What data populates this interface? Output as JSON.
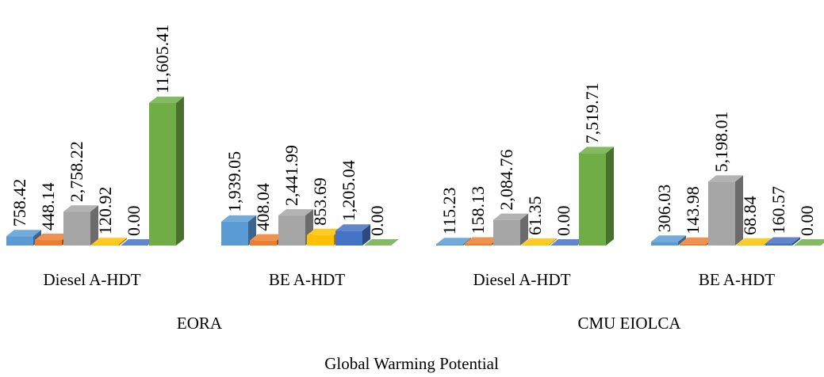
{
  "chart_data": {
    "type": "bar3d",
    "title": "Global Warming Potential",
    "categories": [
      "Diesel A-HDT",
      "BE A-HDT",
      "Diesel A-HDT",
      "BE A-HDT"
    ],
    "groups": [
      "EORA",
      "CMU EIOLCA"
    ],
    "series": [
      {
        "color": "#5b9bd5",
        "values": [
          758.42,
          1939.05,
          115.23,
          306.03
        ],
        "value_labels": [
          "758.42",
          "1,939.05",
          "115.23",
          "306.03"
        ]
      },
      {
        "color": "#ed7d31",
        "values": [
          448.14,
          408.04,
          158.13,
          143.98
        ],
        "value_labels": [
          "448.14",
          "408.04",
          "158.13",
          "143.98"
        ]
      },
      {
        "color": "#a5a5a5",
        "values": [
          2758.22,
          2441.99,
          2084.76,
          5198.01
        ],
        "value_labels": [
          "2,758.22",
          "2,441.99",
          "2,084.76",
          "5,198.01"
        ]
      },
      {
        "color": "#ffc000",
        "values": [
          120.92,
          853.69,
          61.35,
          68.84
        ],
        "value_labels": [
          "120.92",
          "853.69",
          "61.35",
          "68.84"
        ]
      },
      {
        "color": "#4472c4",
        "values": [
          0.0,
          1205.04,
          0.0,
          160.57
        ],
        "value_labels": [
          "0.00",
          "1,205.04",
          "0.00",
          "160.57"
        ]
      },
      {
        "color": "#70ad47",
        "values": [
          11605.41,
          0.0,
          7519.71,
          0.0
        ],
        "value_labels": [
          "11,605.41",
          "0.00",
          "7,519.71",
          "0.00"
        ]
      }
    ]
  }
}
